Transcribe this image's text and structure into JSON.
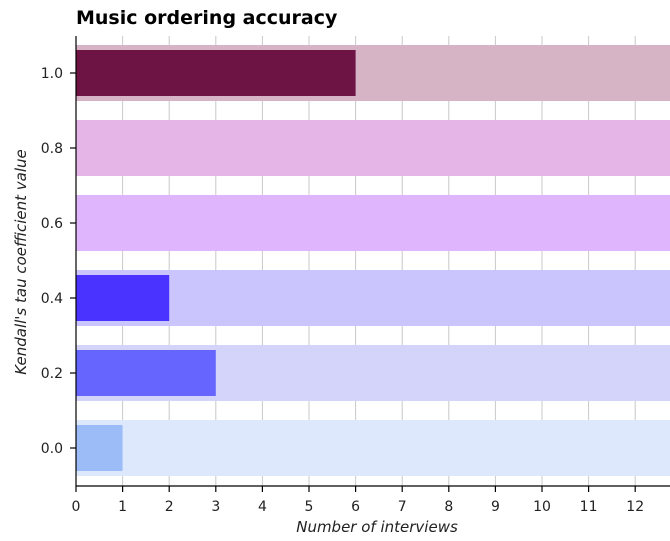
{
  "chart_data": {
    "type": "bar",
    "orientation": "horizontal",
    "title": "Music ordering accuracy",
    "xlabel": "Number of interviews",
    "ylabel": "Kendall's tau coefficient value",
    "xlim": [
      0,
      12.8
    ],
    "xticks": [
      "0",
      "1",
      "2",
      "3",
      "4",
      "5",
      "6",
      "7",
      "8",
      "9",
      "10",
      "11",
      "12"
    ],
    "grid": "vertical",
    "categories": [
      "0.0",
      "0.2",
      "0.4",
      "0.6",
      "0.8",
      "1.0"
    ],
    "values": [
      1,
      3,
      2,
      0,
      0,
      6
    ],
    "bar_colors": [
      "#9cbcf8",
      "#6666ff",
      "#4a33ff",
      "#d6a3ff",
      "#dea6e8",
      "#6e1444"
    ],
    "background_colors": [
      "#dde8fc",
      "#d4d4fb",
      "#cac6fd",
      "#dfb6fe",
      "#e4b5e6",
      "#d6b4c6"
    ]
  }
}
